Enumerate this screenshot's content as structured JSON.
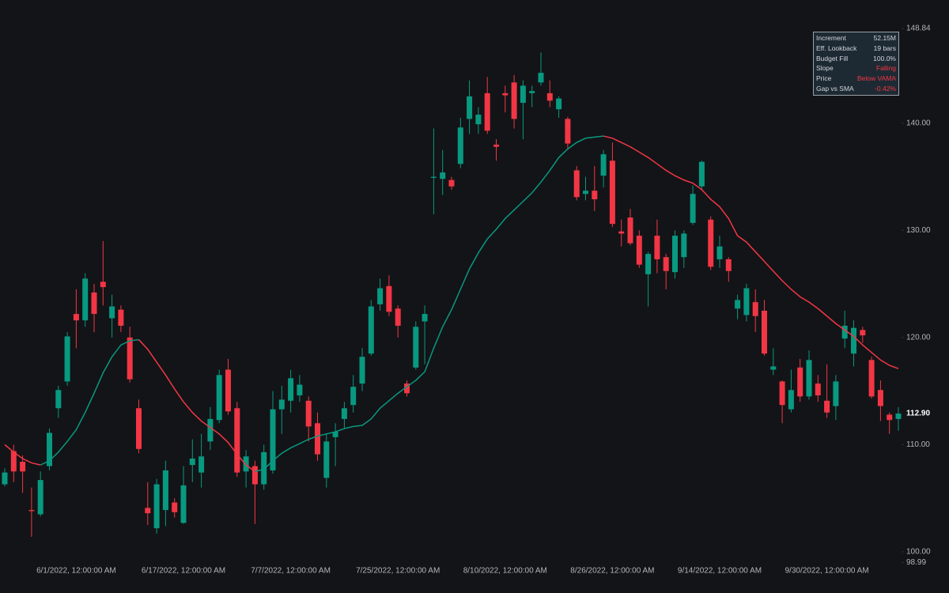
{
  "chart_data": {
    "type": "candlestick",
    "categories": [
      null,
      null,
      null,
      null,
      null,
      null,
      null,
      null,
      "6/1/2022, 12:00:00 AM",
      null,
      null,
      null,
      null,
      null,
      null,
      null,
      null,
      null,
      null,
      null,
      "6/17/2022, 12:00:00 AM",
      null,
      null,
      null,
      null,
      null,
      null,
      null,
      null,
      null,
      null,
      null,
      "7/7/2022, 12:00:00 AM",
      null,
      null,
      null,
      null,
      null,
      null,
      null,
      null,
      null,
      null,
      null,
      "7/25/2022, 12:00:00 AM",
      null,
      null,
      null,
      null,
      null,
      null,
      null,
      null,
      null,
      null,
      null,
      "8/10/2022, 12:00:00 AM",
      null,
      null,
      null,
      null,
      null,
      null,
      null,
      null,
      null,
      null,
      null,
      "8/26/2022, 12:00:00 AM",
      null,
      null,
      null,
      null,
      null,
      null,
      null,
      null,
      null,
      null,
      null,
      "9/14/2022, 12:00:00 AM",
      null,
      null,
      null,
      null,
      null,
      null,
      null,
      null,
      null,
      null,
      null,
      "9/30/2022, 12:00:00 AM",
      null,
      null,
      null,
      null,
      null,
      null,
      null,
      null
    ],
    "open": [
      106.3,
      109.4,
      108.4,
      103.9,
      103.5,
      108.0,
      113.4,
      115.9,
      122.2,
      121.6,
      124.2,
      125.2,
      121.8,
      122.6,
      120.0,
      113.4,
      104.1,
      102.2,
      103.9,
      104.6,
      102.7,
      108.1,
      107.4,
      110.3,
      112.3,
      117.0,
      113.4,
      107.5,
      108.0,
      106.3,
      107.6,
      113.3,
      114.1,
      114.6,
      114.1,
      112.0,
      106.9,
      110.7,
      112.4,
      113.7,
      115.7,
      118.5,
      123.1,
      124.8,
      122.7,
      115.7,
      117.2,
      121.5,
      134.9,
      134.8,
      134.7,
      136.2,
      140.4,
      139.9,
      142.8,
      138.0,
      142.8,
      143.8,
      141.9,
      142.8,
      143.8,
      142.8,
      141.3,
      140.4,
      135.6,
      133.4,
      133.7,
      135.1,
      136.5,
      129.9,
      131.2,
      129.5,
      125.9,
      129.5,
      127.5,
      126.1,
      127.5,
      130.7,
      134.1,
      131.0,
      127.3,
      127.3,
      122.7,
      122.1,
      123.3,
      122.5,
      117.0,
      115.9,
      113.3,
      117.2,
      114.5,
      115.7,
      114.1,
      113.6,
      119.9,
      118.5,
      120.7,
      117.9,
      115.1,
      112.8,
      112.4
    ],
    "high": [
      107.8,
      110.0,
      109.0,
      106.0,
      107.5,
      111.5,
      115.5,
      120.5,
      124.5,
      126.0,
      125.0,
      129.0,
      124.0,
      123.0,
      121.0,
      114.2,
      106.5,
      106.8,
      108.5,
      105.0,
      108.0,
      110.5,
      111.0,
      113.5,
      117.0,
      118.0,
      114.0,
      109.5,
      108.5,
      110.0,
      115.0,
      115.5,
      117.0,
      116.5,
      114.5,
      113.0,
      111.0,
      112.0,
      114.0,
      116.5,
      119.0,
      123.5,
      125.5,
      125.8,
      123.0,
      116.0,
      121.5,
      123.0,
      139.5,
      137.5,
      135.0,
      140.5,
      144.0,
      141.5,
      144.3,
      138.5,
      143.5,
      144.5,
      144.0,
      143.5,
      146.6,
      144.0,
      142.5,
      140.6,
      136.0,
      135.0,
      136.0,
      137.5,
      138.2,
      131.0,
      132.0,
      130.0,
      128.0,
      131.0,
      127.8,
      130.0,
      130.0,
      134.2,
      136.5,
      131.3,
      129.5,
      127.5,
      124.0,
      125.0,
      124.5,
      123.5,
      119.0,
      116.0,
      117.0,
      118.0,
      118.8,
      116.5,
      117.5,
      116.5,
      122.5,
      121.6,
      121.0,
      118.2,
      116.0,
      113.0,
      113.5
    ],
    "low": [
      106.1,
      106.5,
      105.5,
      101.4,
      103.3,
      107.6,
      112.5,
      115.5,
      119.0,
      121.0,
      120.5,
      123.0,
      120.0,
      120.5,
      115.8,
      109.2,
      102.5,
      101.7,
      102.4,
      103.2,
      102.6,
      106.5,
      106.0,
      109.5,
      112.0,
      112.8,
      107.0,
      106.0,
      102.6,
      105.8,
      107.3,
      111.0,
      113.0,
      114.0,
      110.3,
      108.5,
      106.0,
      108.0,
      111.5,
      113.0,
      115.0,
      118.3,
      122.5,
      122.0,
      120.0,
      114.5,
      117.0,
      117.5,
      131.5,
      133.3,
      133.8,
      135.8,
      139.0,
      139.0,
      139.0,
      136.5,
      141.0,
      139.5,
      138.5,
      141.5,
      143.5,
      141.5,
      140.5,
      137.5,
      132.8,
      132.8,
      131.8,
      134.0,
      130.3,
      128.5,
      128.6,
      126.5,
      122.9,
      126.0,
      124.5,
      125.5,
      126.5,
      130.5,
      133.8,
      126.3,
      126.5,
      125.2,
      121.7,
      121.5,
      120.5,
      118.3,
      116.5,
      112.0,
      113.0,
      114.0,
      114.2,
      114.0,
      112.5,
      112.3,
      119.0,
      117.3,
      119.5,
      114.3,
      112.2,
      111.0,
      111.3
    ],
    "close": [
      107.4,
      107.5,
      107.5,
      103.8,
      106.7,
      111.1,
      115.1,
      120.1,
      121.6,
      125.5,
      122.2,
      124.7,
      122.9,
      121.1,
      116.1,
      109.6,
      103.6,
      106.3,
      107.6,
      103.7,
      106.2,
      108.7,
      108.9,
      112.4,
      116.5,
      113.1,
      107.4,
      108.9,
      106.3,
      109.3,
      113.3,
      114.2,
      116.2,
      115.6,
      111.7,
      109.1,
      110.3,
      111.2,
      113.4,
      115.4,
      118.2,
      122.9,
      124.6,
      122.4,
      121.1,
      114.8,
      121.0,
      122.2,
      135.0,
      135.4,
      134.1,
      139.6,
      142.5,
      140.8,
      139.3,
      137.8,
      142.6,
      140.4,
      143.5,
      143.0,
      144.7,
      142.1,
      142.3,
      138.1,
      133.1,
      133.7,
      132.9,
      137.1,
      130.6,
      129.7,
      128.8,
      126.8,
      127.8,
      127.3,
      126.2,
      129.5,
      129.7,
      133.4,
      136.4,
      126.6,
      128.5,
      126.2,
      123.5,
      124.6,
      122.0,
      118.5,
      117.3,
      113.7,
      115.1,
      114.5,
      117.9,
      114.6,
      113.0,
      115.9,
      121.1,
      120.9,
      120.2,
      114.5,
      113.6,
      112.3,
      112.9
    ],
    "vama": [
      110.0,
      109.3,
      108.7,
      108.3,
      108.1,
      108.5,
      109.3,
      110.3,
      111.4,
      113.0,
      114.8,
      116.7,
      118.2,
      119.3,
      119.7,
      119.8,
      118.9,
      117.7,
      116.5,
      115.2,
      114.0,
      113.0,
      112.2,
      111.6,
      111.0,
      110.2,
      109.1,
      108.1,
      107.5,
      107.7,
      108.5,
      109.2,
      109.7,
      110.1,
      110.5,
      110.8,
      111.0,
      111.2,
      111.5,
      111.7,
      111.8,
      112.4,
      113.4,
      114.1,
      114.8,
      115.4,
      116.0,
      116.8,
      119.0,
      121.0,
      122.6,
      124.5,
      126.4,
      127.9,
      129.2,
      130.1,
      131.1,
      131.9,
      132.7,
      133.5,
      134.5,
      135.6,
      136.8,
      137.6,
      138.2,
      138.6,
      138.7,
      138.8,
      138.6,
      138.2,
      137.8,
      137.3,
      136.8,
      136.2,
      135.6,
      135.1,
      134.7,
      134.4,
      133.8,
      132.9,
      132.2,
      131.1,
      129.5,
      128.9,
      128.0,
      127.1,
      126.2,
      125.3,
      124.5,
      123.8,
      123.3,
      122.7,
      122.0,
      121.3,
      120.7,
      120.1,
      119.3,
      118.6,
      117.9,
      117.4,
      117.1
    ],
    "up_color": "#089981",
    "down_color": "#f23645",
    "ylim": [
      98.99,
      148.84
    ],
    "yticks": [
      98.99,
      {
        "value": 100,
        "label": "100.00"
      },
      {
        "value": 110,
        "label": "110.00"
      },
      {
        "value": 120,
        "label": "120.00"
      },
      {
        "value": 130,
        "label": "130.00"
      },
      {
        "value": 140,
        "label": "140.00"
      },
      148.84
    ],
    "last_price": {
      "value": 112.9,
      "label": "112.90"
    }
  },
  "info_table": {
    "rows": [
      [
        "Increment",
        "52.15M"
      ],
      [
        "Eff. Lookback",
        "19 bars"
      ],
      [
        "Budget Fill",
        "100.0%"
      ],
      [
        "Slope",
        "Falling"
      ],
      [
        "Price",
        "Below VAMA"
      ],
      [
        "Gap vs SMA",
        "-0.42%"
      ]
    ],
    "value_colors": [
      "#d1d4dc",
      "#d1d4dc",
      "#d1d4dc",
      "#f23645",
      "#f23645",
      "#f23645"
    ]
  }
}
